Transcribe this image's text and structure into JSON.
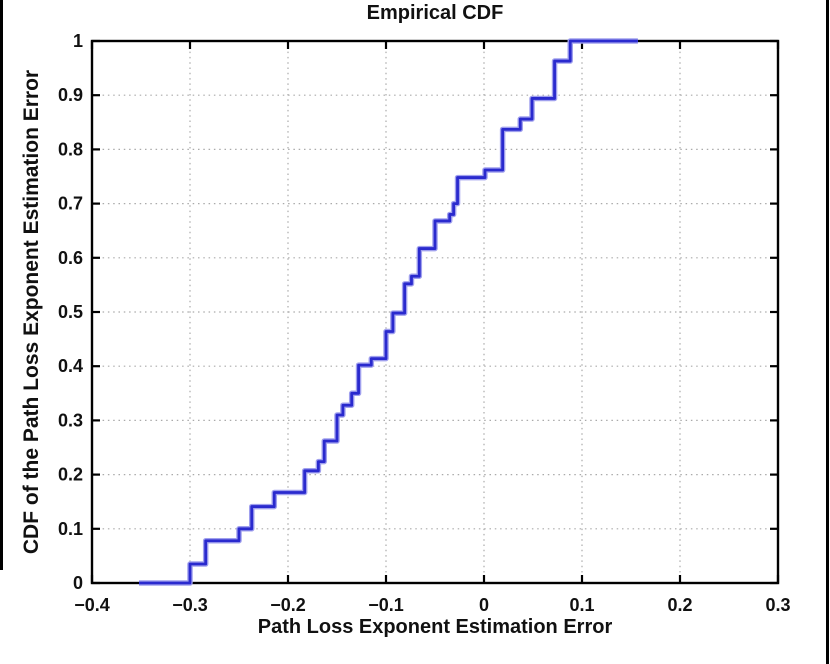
{
  "page": {
    "background": "#ffffff",
    "edge_line_color": "#000000"
  },
  "chart_data": {
    "type": "line",
    "subtype": "empirical-cdf-step",
    "title": "Empirical CDF",
    "xlabel": "Path Loss Exponent Estimation Error",
    "ylabel": "CDF of the Path Loss Exponent Estimation Error",
    "xlim": [
      -0.4,
      0.3
    ],
    "ylim": [
      0,
      1
    ],
    "x_ticks": [
      -0.4,
      -0.3,
      -0.2,
      -0.1,
      0,
      0.1,
      0.2,
      0.3
    ],
    "x_tick_labels": [
      "−0.4",
      "−0.3",
      "−0.2",
      "−0.1",
      "0",
      "0.1",
      "0.2",
      "0.3"
    ],
    "y_ticks": [
      0,
      0.1,
      0.2,
      0.3,
      0.4,
      0.5,
      0.6,
      0.7,
      0.8,
      0.9,
      1
    ],
    "y_tick_labels": [
      "0",
      "0.1",
      "0.2",
      "0.3",
      "0.4",
      "0.5",
      "0.6",
      "0.7",
      "0.8",
      "0.9",
      "1"
    ],
    "grid": true,
    "grid_color": "#aaaaaa",
    "axis_color": "#000000",
    "line_color": "#2a2ace",
    "line_halo_color": "#a0a0ee",
    "legend": "none",
    "series": [
      {
        "name": "ecdf",
        "start_x": -0.352,
        "end_x": 0.157,
        "step_x": [
          -0.3,
          -0.284,
          -0.25,
          -0.237,
          -0.214,
          -0.183,
          -0.169,
          -0.163,
          -0.15,
          -0.144,
          -0.135,
          -0.128,
          -0.115,
          -0.1,
          -0.093,
          -0.081,
          -0.074,
          -0.066,
          -0.05,
          -0.035,
          -0.031,
          -0.027,
          0.001,
          0.019,
          0.037,
          0.049,
          0.072,
          0.088
        ],
        "step_y": [
          0.035,
          0.078,
          0.1,
          0.141,
          0.167,
          0.207,
          0.224,
          0.262,
          0.31,
          0.328,
          0.35,
          0.402,
          0.414,
          0.464,
          0.498,
          0.552,
          0.566,
          0.617,
          0.668,
          0.68,
          0.7,
          0.748,
          0.762,
          0.837,
          0.856,
          0.894,
          0.963,
          1.0
        ]
      }
    ]
  }
}
